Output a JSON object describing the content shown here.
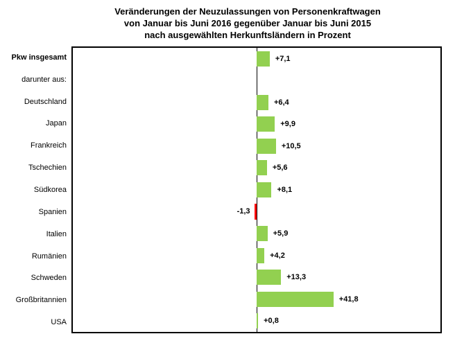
{
  "title": {
    "line1": "Veränderungen der Neuzulassungen von Personenkraftwagen",
    "line2": "von Januar bis Juni 2016 gegenüber Januar bis Juni 2015",
    "line3": "nach ausgewählten Herkunftsländern in Prozent"
  },
  "chart_data": {
    "type": "bar",
    "orientation": "horizontal",
    "title": "Veränderungen der Neuzulassungen von Personenkraftwagen von Januar bis Juni 2016 gegenüber Januar bis Juni 2015 nach ausgewählten Herkunftsländern in Prozent",
    "unit": "Prozent",
    "xlim": [
      -100,
      100
    ],
    "grid": false,
    "legend": false,
    "colors": {
      "positive": "#92D050",
      "negative": "#FF0000",
      "axis": "#000000"
    },
    "rows": [
      {
        "label": "Pkw insgesamt",
        "value": 7.1,
        "display": "+7,1",
        "bold": true
      },
      {
        "label": "darunter aus:",
        "value": null,
        "display": "",
        "bold": false
      },
      {
        "label": "Deutschland",
        "value": 6.4,
        "display": "+6,4",
        "bold": false
      },
      {
        "label": "Japan",
        "value": 9.9,
        "display": "+9,9",
        "bold": false
      },
      {
        "label": "Frankreich",
        "value": 10.5,
        "display": "+10,5",
        "bold": false
      },
      {
        "label": "Tschechien",
        "value": 5.6,
        "display": "+5,6",
        "bold": false
      },
      {
        "label": "Südkorea",
        "value": 8.1,
        "display": "+8,1",
        "bold": false
      },
      {
        "label": "Spanien",
        "value": -1.3,
        "display": "-1,3",
        "bold": false
      },
      {
        "label": "Italien",
        "value": 5.9,
        "display": "+5,9",
        "bold": false
      },
      {
        "label": "Rumänien",
        "value": 4.2,
        "display": "+4,2",
        "bold": false
      },
      {
        "label": "Schweden",
        "value": 13.3,
        "display": "+13,3",
        "bold": false
      },
      {
        "label": "Großbritannien",
        "value": 41.8,
        "display": "+41,8",
        "bold": false
      },
      {
        "label": "USA",
        "value": 0.8,
        "display": "+0,8",
        "bold": false
      }
    ]
  }
}
